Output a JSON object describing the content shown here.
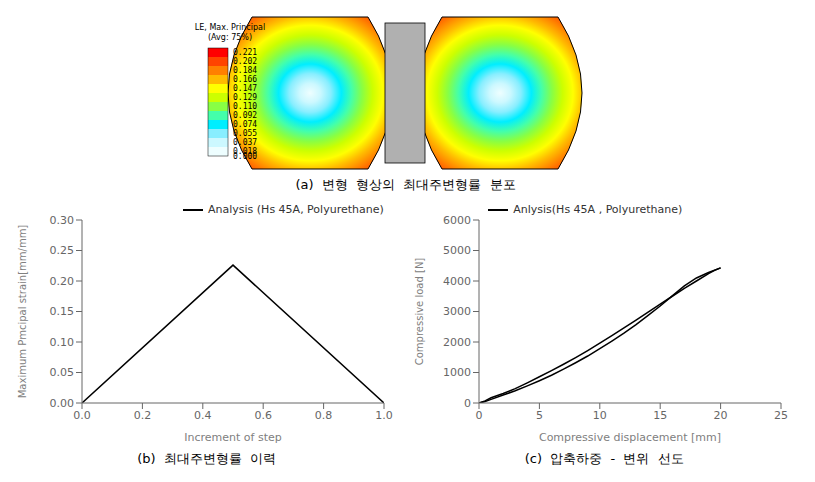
{
  "chart_data": [
    {
      "type": "image",
      "title": "(a)  변형  형상의  최대주변형률  분포",
      "colorbar": {
        "title": "LE, Max. Principal\n(Avg: 75%)",
        "colors": [
          "#ff0000",
          "#ff4400",
          "#ff8000",
          "#ffbb00",
          "#ffff00",
          "#ccff00",
          "#88ff44",
          "#44ffaa",
          "#00eeff",
          "#88eeff",
          "#ccf8ff",
          "#eefeff"
        ],
        "ticks": [
          0.221,
          0.202,
          0.184,
          0.166,
          0.147,
          0.129,
          {
            "value": 0.11,
            "label": "0.110"
          },
          0.092,
          0.074,
          0.055,
          0.037,
          0.018,
          {
            "value": 0,
            "label": "0.000"
          }
        ]
      }
    },
    {
      "type": "line",
      "title": "(b)  최대주변형률  이력",
      "x": [
        0.0,
        0.5,
        1.0
      ],
      "series": [
        {
          "name": "Analysis (Hs 45A, Polyurethane)",
          "color": "#000000",
          "values": [
            0.0,
            0.226,
            0.0
          ]
        }
      ],
      "xlabel": "Increment of step",
      "ylabel": "Maximum Pmcipal strain[mm/mm]",
      "xlim": [
        0.0,
        1.0
      ],
      "ylim": [
        0.0,
        0.3
      ],
      "xticks": [
        {
          "value": 0,
          "label": "0.0"
        },
        0.2,
        0.4,
        0.6,
        0.8,
        {
          "value": 1,
          "label": "1.0"
        }
      ],
      "yticks": [
        {
          "value": 0,
          "label": "0.00"
        },
        0.05,
        {
          "value": 0.1,
          "label": "0.10"
        },
        0.15,
        {
          "value": 0.2,
          "label": "0.20"
        },
        0.25,
        {
          "value": 0.3,
          "label": "0.30"
        }
      ],
      "legend": "upper right",
      "grid": false
    },
    {
      "type": "line",
      "title": "(c)  압축하중  -  변위  선도",
      "series": [
        {
          "name": "Anlysis(Hs 45A , Polyurethane)",
          "color": "#000000",
          "x": [
            0.0,
            0.5,
            1.0,
            2.0,
            3.0,
            4.0,
            5.0,
            6.0,
            7.0,
            8.0,
            9.0,
            10.0,
            11.0,
            12.0,
            13.0,
            14.0,
            15.0,
            16.0,
            17.0,
            18.0,
            19.0,
            20.0
          ],
          "values": [
            0.0,
            50,
            120,
            260,
            400,
            560,
            730,
            910,
            1110,
            1320,
            1540,
            1780,
            2030,
            2290,
            2570,
            2870,
            3180,
            3510,
            3840,
            4100,
            4280,
            4430
          ]
        },
        {
          "color": "#000000",
          "x": [
            20.0,
            19.5,
            19.0,
            18.0,
            17.0,
            16.0,
            15.0,
            14.0,
            13.0,
            12.0,
            11.0,
            10.0,
            9.0,
            8.0,
            7.0,
            6.0,
            5.0,
            4.0,
            3.0,
            2.0,
            1.0,
            0.5,
            0.0
          ],
          "values": [
            4430,
            4350,
            4240,
            4000,
            3760,
            3500,
            3240,
            2980,
            2720,
            2460,
            2210,
            1960,
            1720,
            1490,
            1270,
            1060,
            860,
            660,
            470,
            310,
            170,
            70,
            0
          ]
        }
      ],
      "xlabel": "Compressive displacement [mm]",
      "ylabel": "Compressive load [N]",
      "xlim": [
        0,
        25
      ],
      "ylim": [
        0,
        6000
      ],
      "xticks": [
        0,
        5,
        10,
        15,
        20,
        25
      ],
      "yticks": [
        0,
        1000,
        2000,
        3000,
        4000,
        5000,
        6000
      ],
      "legend": "upper left",
      "grid": false
    }
  ]
}
